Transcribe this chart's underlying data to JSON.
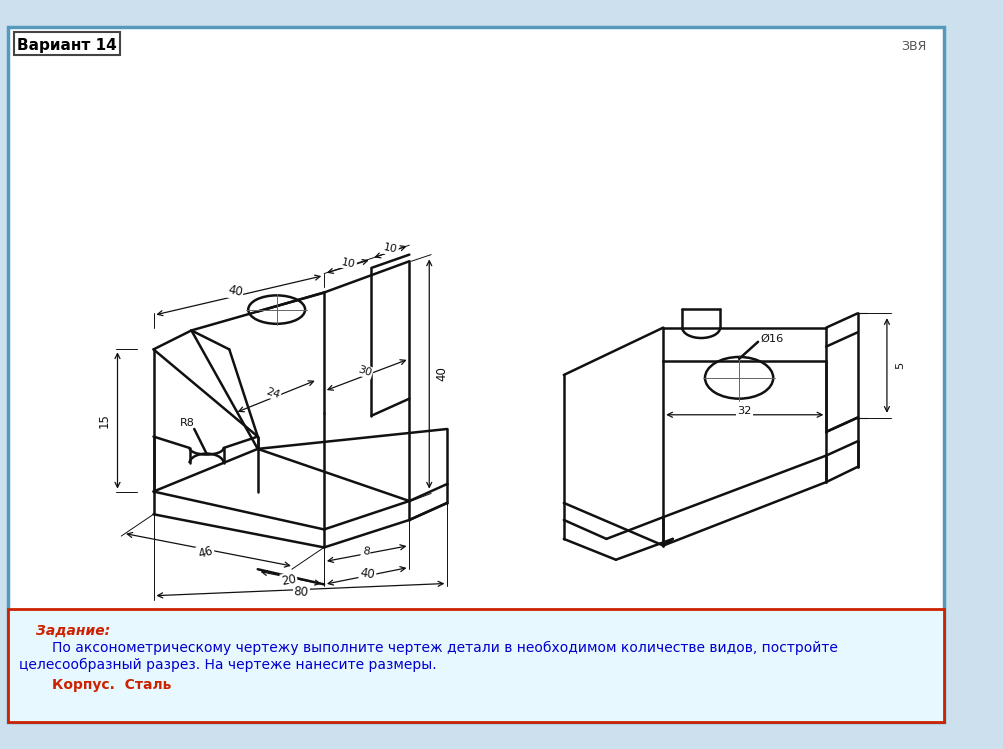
{
  "bg_color": "#cce0ee",
  "drawing_bg": "#ffffff",
  "border_color": "#5599bb",
  "bottom_box_bg": "#e8f8ff",
  "bottom_border": "#cc2200",
  "variant_text": "Вариант 14",
  "corner_text": "ЗВЯ",
  "zadanie_label": "Задание:",
  "zadanie_text1": "По аксонометрическому чертежу выполните чертеж детали в необходимом количестве видов, постройте",
  "zadanie_text2": "целесообразный разрез. На чертеже нанесите размеры.",
  "zadanie_text3": "Корпус.  Сталь",
  "zadanie_color": "#0000cc",
  "zadanie_label_color": "#cc2200",
  "korpus_color": "#cc2200"
}
